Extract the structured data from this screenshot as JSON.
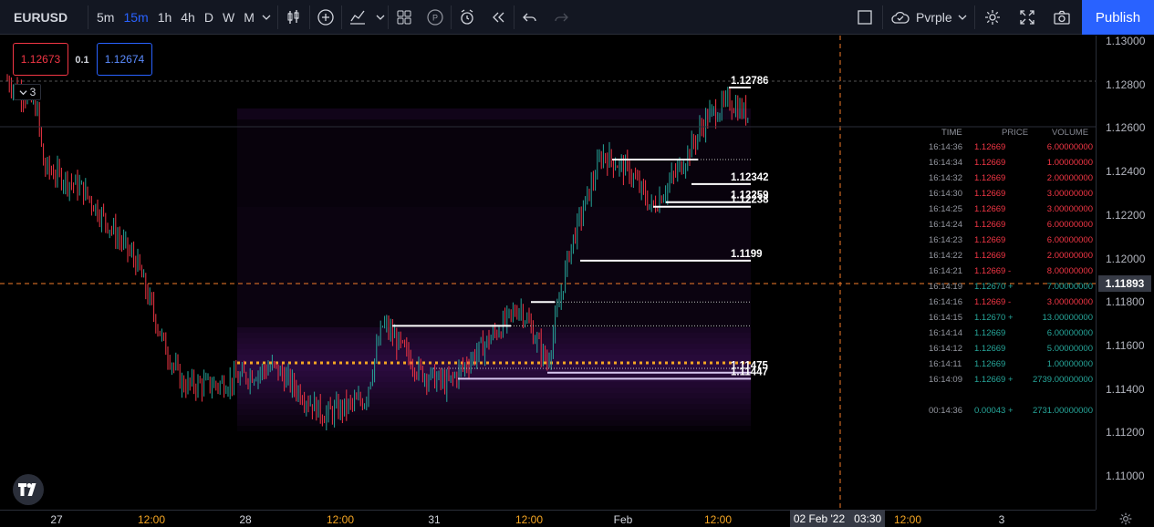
{
  "toolbar": {
    "symbol": "EURUSD",
    "intervals": [
      "5m",
      "15m",
      "1h",
      "4h",
      "D",
      "W",
      "M"
    ],
    "active_interval": "15m",
    "layout_name": "Pvrple",
    "publish_label": "Publish"
  },
  "quote": {
    "sell": "1.12673",
    "spread": "0.1",
    "buy": "1.12674",
    "indicator_count": "3"
  },
  "price_scale": {
    "labels": [
      "1.13000",
      "1.12800",
      "1.12600",
      "1.12400",
      "1.12200",
      "1.12000",
      "1.11800",
      "1.11600",
      "1.11400",
      "1.11200",
      "1.11000"
    ],
    "current": "1.11893"
  },
  "time_scale": {
    "labels": [
      {
        "text": "27",
        "kind": "date"
      },
      {
        "text": "12:00",
        "kind": "time"
      },
      {
        "text": "28",
        "kind": "date"
      },
      {
        "text": "12:00",
        "kind": "time"
      },
      {
        "text": "31",
        "kind": "date"
      },
      {
        "text": "12:00",
        "kind": "time"
      },
      {
        "text": "Feb",
        "kind": "date"
      },
      {
        "text": "12:00",
        "kind": "time"
      },
      {
        "text": "12:00",
        "kind": "time"
      },
      {
        "text": "3",
        "kind": "date"
      }
    ],
    "crosshair_date": "02 Feb '22",
    "crosshair_time": "03:30"
  },
  "levels": [
    {
      "label": "1.12786",
      "price": 1.12786
    },
    {
      "label": "1.12342",
      "price": 1.12342
    },
    {
      "label": "1.12259",
      "price": 1.12259
    },
    {
      "label": "1.12238",
      "price": 1.12238
    },
    {
      "label": "1.1199",
      "price": 1.1199
    },
    {
      "label": "1.11475",
      "price": 1.11475
    },
    {
      "label": "1.11447",
      "price": 1.11447
    }
  ],
  "time_and_sales": {
    "headers": {
      "time": "TIME",
      "price": "PRICE",
      "volume": "VOLUME"
    },
    "rows": [
      {
        "time": "16:14:36",
        "price": "1.12669",
        "volume": "6.00000000",
        "side": "sell"
      },
      {
        "time": "16:14:34",
        "price": "1.12669",
        "volume": "1.00000000",
        "side": "sell"
      },
      {
        "time": "16:14:32",
        "price": "1.12669",
        "volume": "2.00000000",
        "side": "sell"
      },
      {
        "time": "16:14:30",
        "price": "1.12669",
        "volume": "3.00000000",
        "side": "sell"
      },
      {
        "time": "16:14:25",
        "price": "1.12669",
        "volume": "3.00000000",
        "side": "sell"
      },
      {
        "time": "16:14:24",
        "price": "1.12669",
        "volume": "6.00000000",
        "side": "sell"
      },
      {
        "time": "16:14:23",
        "price": "1.12669",
        "volume": "6.00000000",
        "side": "sell"
      },
      {
        "time": "16:14:22",
        "price": "1.12669",
        "volume": "2.00000000",
        "side": "sell"
      },
      {
        "time": "16:14:21",
        "price": "1.12669 -",
        "volume": "8.00000000",
        "side": "sell"
      },
      {
        "time": "16:14:19",
        "price": "1.12670 +",
        "volume": "7.00000000",
        "side": "buy"
      },
      {
        "time": "16:14:16",
        "price": "1.12669 -",
        "volume": "3.00000000",
        "side": "sell"
      },
      {
        "time": "16:14:15",
        "price": "1.12670 +",
        "volume": "13.00000000",
        "side": "buy"
      },
      {
        "time": "16:14:14",
        "price": "1.12669",
        "volume": "6.00000000",
        "side": "buy"
      },
      {
        "time": "16:14:12",
        "price": "1.12669",
        "volume": "5.00000000",
        "side": "buy"
      },
      {
        "time": "16:14:11",
        "price": "1.12669",
        "volume": "1.00000000",
        "side": "buy"
      },
      {
        "time": "16:14:09",
        "price": "1.12669 +",
        "volume": "2739.00000000",
        "side": "buy"
      }
    ],
    "summary": {
      "time": "00:14:36",
      "price": "0.00043 +",
      "volume": "2731.00000000"
    }
  },
  "colors": {
    "accent": "#2962ff",
    "up": "#26a69a",
    "down": "#f23645",
    "volume_profile": "#6a1b9a",
    "poc": "#f5a623",
    "crosshair": "#f57c2a"
  },
  "icons": [
    "bar-style-icon",
    "indicators-icon",
    "chart-type-icon",
    "templates-icon",
    "pine-icon",
    "alert-icon",
    "replay-icon",
    "undo-icon",
    "redo-icon",
    "fullscreen-toggle-icon",
    "cloud-icon",
    "settings-icon",
    "maximize-icon",
    "camera-icon",
    "tradingview-logo"
  ]
}
